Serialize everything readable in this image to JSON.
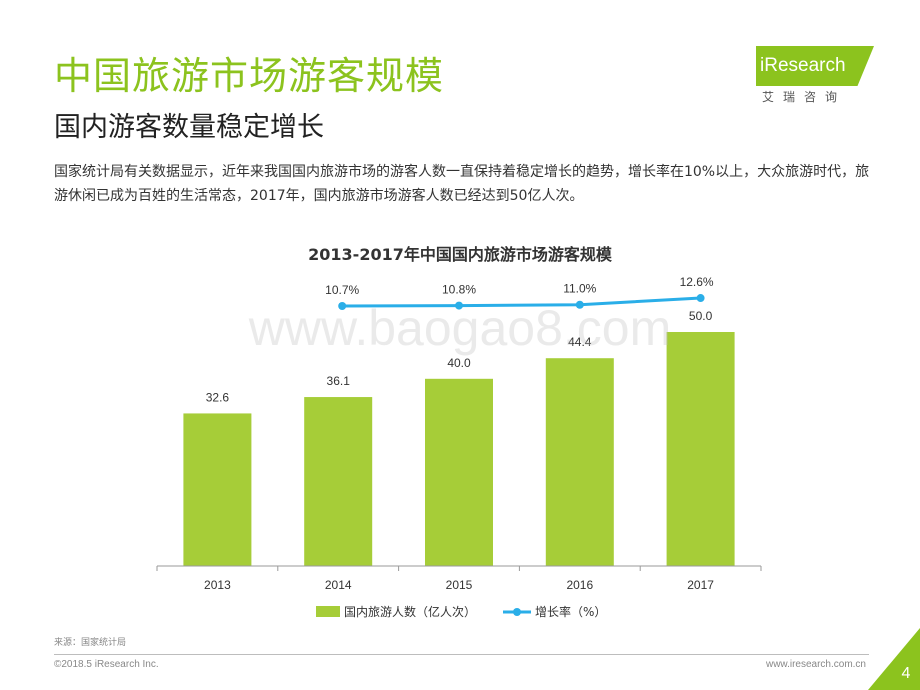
{
  "slide": {
    "title": "中国旅游市场游客规模",
    "subtitle": "国内游客数量稳定增长",
    "summary": "国家统计局有关数据显示，近年来我国国内旅游市场的游客人数一直保持着稳定增长的趋势，增长率在10%以上，大众旅游时代，旅游休闲已成为百姓的生活常态，2017年，国内旅游市场游客人数已经达到50亿人次。",
    "source": "来源：国家统计局",
    "copyright": "©2018.5 iResearch Inc.",
    "website": "www.iresearch.com.cn",
    "page_number": "4",
    "watermark": "www.baogao8.com"
  },
  "logo": {
    "wordmark": "iResearch",
    "chinese": "艾瑞咨询"
  },
  "colors": {
    "brand_green": "#8cc31e",
    "bar_green": "#a6cd38",
    "line_blue": "#2aaee8"
  },
  "chart_data": {
    "type": "bar",
    "title": "2013-2017年中国国内旅游市场游客规模",
    "categories": [
      "2013",
      "2014",
      "2015",
      "2016",
      "2017"
    ],
    "series": [
      {
        "name": "国内旅游人数（亿人次）",
        "type": "bar",
        "values": [
          32.6,
          36.1,
          40.0,
          44.4,
          50.0
        ],
        "labels": [
          "32.6",
          "36.1",
          "40.0",
          "44.4",
          "50.0"
        ]
      },
      {
        "name": "增长率（%）",
        "type": "line",
        "values": [
          null,
          10.7,
          10.8,
          11.0,
          12.6
        ],
        "labels": [
          "",
          "10.7%",
          "10.8%",
          "11.0%",
          "12.6%"
        ]
      }
    ],
    "ylim": [
      0,
      50
    ],
    "line_ylim": [
      0,
      15
    ],
    "grid": false,
    "legend_position": "bottom"
  }
}
